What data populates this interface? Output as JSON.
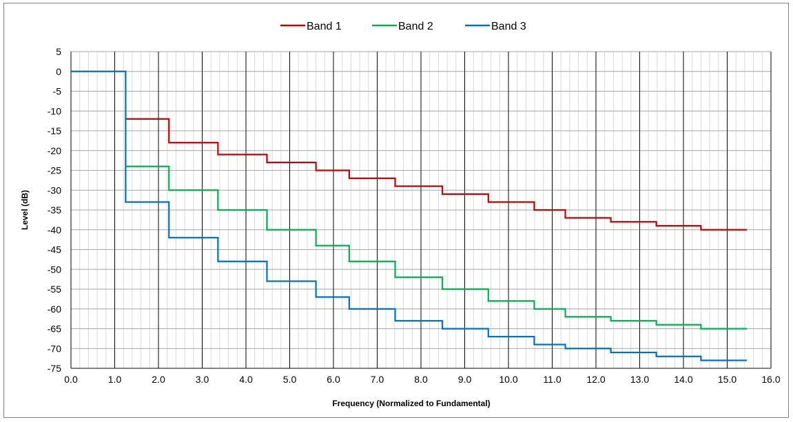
{
  "chart_data": {
    "type": "line",
    "title": "",
    "xlabel": "Frequency (Normalized to Fundamental)",
    "ylabel": "Level (dB)",
    "xlim": [
      0,
      16
    ],
    "ylim": [
      -75,
      5
    ],
    "x_ticks": [
      "0.0",
      "1.0",
      "2.0",
      "3.0",
      "4.0",
      "5.0",
      "6.0",
      "7.0",
      "8.0",
      "9.0",
      "10.0",
      "11.0",
      "12.0",
      "13.0",
      "14.0",
      "15.0",
      "16.0"
    ],
    "y_ticks": [
      "5",
      "0",
      "-5",
      "-10",
      "-15",
      "-20",
      "-25",
      "-30",
      "-35",
      "-40",
      "-45",
      "-50",
      "-55",
      "-60",
      "-65",
      "-70",
      "-75"
    ],
    "grid": true,
    "legend_position": "top-center",
    "step_edges": [
      1.25,
      2.24,
      3.36,
      4.48,
      5.6,
      6.36,
      7.41,
      8.49,
      9.54,
      10.59,
      11.3,
      12.34,
      13.38,
      14.4,
      15.45
    ],
    "series": [
      {
        "name": "Band 1",
        "color": "#c00000",
        "values": [
          -12,
          -18,
          -21,
          -23,
          -25,
          -27,
          -29,
          -31,
          -33,
          -35,
          -37,
          -38,
          -39,
          -40
        ]
      },
      {
        "name": "Band 2",
        "color": "#00b050",
        "values": [
          -24,
          -30,
          -35,
          -40,
          -44,
          -48,
          -52,
          -55,
          -58,
          -60,
          -62,
          -63,
          -64,
          -65
        ]
      },
      {
        "name": "Band 3",
        "color": "#0070c0",
        "values": [
          -33,
          -42,
          -48,
          -53,
          -57,
          -60,
          -63,
          -65,
          -67,
          -69,
          -70,
          -71,
          -72,
          -73
        ]
      }
    ],
    "shared_start": {
      "x": [
        0.0,
        1.25
      ],
      "y": 0
    }
  }
}
